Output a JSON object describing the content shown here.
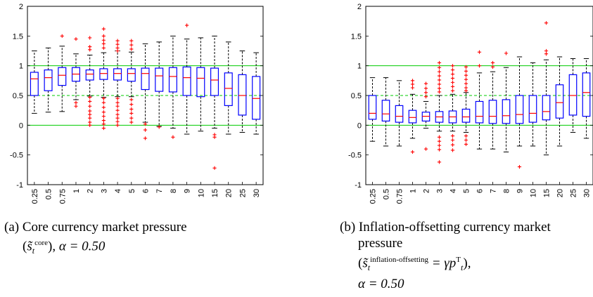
{
  "chart_data": [
    {
      "type": "box",
      "panel_label": "(a)",
      "caption": "Core currency market pressure",
      "caption_math": {
        "symbol": "s̃",
        "subscript": "t",
        "superscript": "core",
        "alpha_text": "α = 0.50"
      },
      "categories": [
        "0.25",
        "0.5",
        "0.75",
        "1",
        "2",
        "3",
        "4",
        "5",
        "6",
        "7",
        "8",
        "9",
        "10",
        "15",
        "20",
        "25",
        "30"
      ],
      "ylim": [
        -1,
        2
      ],
      "yticks": [
        "-1",
        "-0.5",
        "0",
        "0.5",
        "1",
        "1.5",
        "2"
      ],
      "reference_lines": [
        {
          "y": 1,
          "style": "solid",
          "color": "#00cc00"
        },
        {
          "y": 0.5,
          "style": "dashed",
          "color": "#00cc00"
        },
        {
          "y": 0,
          "style": "solid",
          "color": "#00cc00"
        }
      ],
      "boxes": [
        {
          "median": 0.78,
          "q1": 0.5,
          "q3": 0.89,
          "wmin": 0.2,
          "wmax": 1.25
        },
        {
          "median": 0.8,
          "q1": 0.58,
          "q3": 0.93,
          "wmin": 0.22,
          "wmax": 1.3
        },
        {
          "median": 0.84,
          "q1": 0.67,
          "q3": 0.97,
          "wmin": 0.23,
          "wmax": 1.33
        },
        {
          "median": 0.86,
          "q1": 0.74,
          "q3": 0.97,
          "wmin": 0.43,
          "wmax": 1.2
        },
        {
          "median": 0.86,
          "q1": 0.76,
          "q3": 0.93,
          "wmin": 0.49,
          "wmax": 1.18
        },
        {
          "median": 0.87,
          "q1": 0.77,
          "q3": 0.95,
          "wmin": 0.47,
          "wmax": 1.22
        },
        {
          "median": 0.87,
          "q1": 0.76,
          "q3": 0.95,
          "wmin": 0.48,
          "wmax": 1.25
        },
        {
          "median": 0.87,
          "q1": 0.74,
          "q3": 0.95,
          "wmin": 0.48,
          "wmax": 1.23
        },
        {
          "median": 0.87,
          "q1": 0.6,
          "q3": 0.96,
          "wmin": 0.05,
          "wmax": 1.37
        },
        {
          "median": 0.83,
          "q1": 0.57,
          "q3": 0.96,
          "wmin": -0.02,
          "wmax": 1.4
        },
        {
          "median": 0.82,
          "q1": 0.56,
          "q3": 0.97,
          "wmin": -0.05,
          "wmax": 1.5
        },
        {
          "median": 0.8,
          "q1": 0.5,
          "q3": 0.98,
          "wmin": -0.15,
          "wmax": 1.45
        },
        {
          "median": 0.79,
          "q1": 0.48,
          "q3": 0.97,
          "wmin": -0.1,
          "wmax": 1.47
        },
        {
          "median": 0.76,
          "q1": 0.5,
          "q3": 0.96,
          "wmin": -0.05,
          "wmax": 1.5
        },
        {
          "median": 0.62,
          "q1": 0.33,
          "q3": 0.88,
          "wmin": -0.15,
          "wmax": 1.4
        },
        {
          "median": 0.5,
          "q1": 0.17,
          "q3": 0.85,
          "wmin": -0.12,
          "wmax": 1.25
        },
        {
          "median": 0.45,
          "q1": 0.1,
          "q3": 0.82,
          "wmin": -0.15,
          "wmax": 1.22
        }
      ],
      "outliers": [
        {
          "x": "0.75",
          "y": 1.5
        },
        {
          "x": "1",
          "y": 1.45
        },
        {
          "x": "1",
          "y": 0.38
        },
        {
          "x": "1",
          "y": 0.32
        },
        {
          "x": "2",
          "y": 1.47
        },
        {
          "x": "2",
          "y": 1.32
        },
        {
          "x": "2",
          "y": 1.27
        },
        {
          "x": "2",
          "y": 0.47
        },
        {
          "x": "2",
          "y": 0.4
        },
        {
          "x": "2",
          "y": 0.32
        },
        {
          "x": "2",
          "y": 0.24
        },
        {
          "x": "2",
          "y": 0.18
        },
        {
          "x": "2",
          "y": 0.12
        },
        {
          "x": "2",
          "y": 0.05
        },
        {
          "x": "2",
          "y": 0.0
        },
        {
          "x": "3",
          "y": 1.62
        },
        {
          "x": "3",
          "y": 1.5
        },
        {
          "x": "3",
          "y": 1.43
        },
        {
          "x": "3",
          "y": 1.37
        },
        {
          "x": "3",
          "y": 1.3
        },
        {
          "x": "3",
          "y": 0.45
        },
        {
          "x": "3",
          "y": 0.38
        },
        {
          "x": "3",
          "y": 0.3
        },
        {
          "x": "3",
          "y": 0.22
        },
        {
          "x": "3",
          "y": 0.15
        },
        {
          "x": "3",
          "y": 0.08
        },
        {
          "x": "3",
          "y": 0.02
        },
        {
          "x": "3",
          "y": -0.05
        },
        {
          "x": "4",
          "y": 1.42
        },
        {
          "x": "4",
          "y": 1.36
        },
        {
          "x": "4",
          "y": 1.3
        },
        {
          "x": "4",
          "y": 1.25
        },
        {
          "x": "4",
          "y": 0.45
        },
        {
          "x": "4",
          "y": 0.38
        },
        {
          "x": "4",
          "y": 0.32
        },
        {
          "x": "4",
          "y": 0.25
        },
        {
          "x": "4",
          "y": 0.18
        },
        {
          "x": "4",
          "y": 0.12
        },
        {
          "x": "4",
          "y": 0.06
        },
        {
          "x": "4",
          "y": 0.0
        },
        {
          "x": "5",
          "y": 1.42
        },
        {
          "x": "5",
          "y": 1.35
        },
        {
          "x": "5",
          "y": 1.28
        },
        {
          "x": "5",
          "y": 0.43
        },
        {
          "x": "5",
          "y": 0.35
        },
        {
          "x": "5",
          "y": 0.27
        },
        {
          "x": "5",
          "y": 0.2
        },
        {
          "x": "5",
          "y": 0.12
        },
        {
          "x": "5",
          "y": 0.05
        },
        {
          "x": "6",
          "y": 0.02
        },
        {
          "x": "6",
          "y": -0.08
        },
        {
          "x": "6",
          "y": -0.22
        },
        {
          "x": "7",
          "y": -0.03
        },
        {
          "x": "8",
          "y": -0.2
        },
        {
          "x": "9",
          "y": 1.68
        },
        {
          "x": "15",
          "y": -0.16
        },
        {
          "x": "15",
          "y": -0.2
        },
        {
          "x": "15",
          "y": -0.72
        }
      ]
    },
    {
      "type": "box",
      "panel_label": "(b)",
      "caption": "Inflation-offsetting currency market pressure",
      "caption_math": {
        "symbol": "s̃",
        "subscript": "t",
        "superscript": "inflation-offsetting",
        "rhs": "= γp",
        "rhs_superscript": "T",
        "rhs_subscript": "t",
        "alpha_text": "α = 0.50"
      },
      "categories": [
        "0.25",
        "0.5",
        "0.75",
        "1",
        "2",
        "3",
        "4",
        "5",
        "6",
        "7",
        "8",
        "9",
        "10",
        "15",
        "20",
        "25",
        "30"
      ],
      "ylim": [
        -1,
        2
      ],
      "yticks": [
        "-1",
        "-0.5",
        "0",
        "0.5",
        "1",
        "1.5",
        "2"
      ],
      "reference_lines": [
        {
          "y": 1,
          "style": "solid",
          "color": "#00cc00"
        },
        {
          "y": 0.5,
          "style": "dashed",
          "color": "#00cc00"
        },
        {
          "y": 0,
          "style": "solid",
          "color": "#00cc00"
        }
      ],
      "boxes": [
        {
          "median": 0.2,
          "q1": 0.1,
          "q3": 0.5,
          "wmin": -0.27,
          "wmax": 0.8
        },
        {
          "median": 0.19,
          "q1": 0.07,
          "q3": 0.42,
          "wmin": -0.35,
          "wmax": 0.8
        },
        {
          "median": 0.15,
          "q1": 0.05,
          "q3": 0.33,
          "wmin": -0.35,
          "wmax": 0.75
        },
        {
          "median": 0.13,
          "q1": 0.04,
          "q3": 0.25,
          "wmin": -0.22,
          "wmax": 0.52
        },
        {
          "median": 0.15,
          "q1": 0.07,
          "q3": 0.22,
          "wmin": -0.05,
          "wmax": 0.4
        },
        {
          "median": 0.14,
          "q1": 0.05,
          "q3": 0.23,
          "wmin": -0.1,
          "wmax": 0.5
        },
        {
          "median": 0.14,
          "q1": 0.04,
          "q3": 0.24,
          "wmin": -0.1,
          "wmax": 0.52
        },
        {
          "median": 0.14,
          "q1": 0.05,
          "q3": 0.27,
          "wmin": -0.12,
          "wmax": 0.55
        },
        {
          "median": 0.15,
          "q1": 0.04,
          "q3": 0.4,
          "wmin": -0.4,
          "wmax": 0.88
        },
        {
          "median": 0.15,
          "q1": 0.03,
          "q3": 0.42,
          "wmin": -0.4,
          "wmax": 0.9
        },
        {
          "median": 0.16,
          "q1": 0.03,
          "q3": 0.43,
          "wmin": -0.45,
          "wmax": 0.97
        },
        {
          "median": 0.18,
          "q1": 0.03,
          "q3": 0.5,
          "wmin": -0.35,
          "wmax": 1.15
        },
        {
          "median": 0.2,
          "q1": 0.05,
          "q3": 0.5,
          "wmin": -0.35,
          "wmax": 1.05
        },
        {
          "median": 0.23,
          "q1": 0.09,
          "q3": 0.5,
          "wmin": -0.5,
          "wmax": 1.1
        },
        {
          "median": 0.38,
          "q1": 0.12,
          "q3": 0.68,
          "wmin": -0.35,
          "wmax": 1.15
        },
        {
          "median": 0.5,
          "q1": 0.17,
          "q3": 0.85,
          "wmin": -0.12,
          "wmax": 1.12
        },
        {
          "median": 0.55,
          "q1": 0.15,
          "q3": 0.88,
          "wmin": -0.22,
          "wmax": 1.12
        }
      ],
      "outliers": [
        {
          "x": "1",
          "y": 0.75
        },
        {
          "x": "1",
          "y": 0.69
        },
        {
          "x": "1",
          "y": 0.63
        },
        {
          "x": "1",
          "y": -0.45
        },
        {
          "x": "2",
          "y": 0.7
        },
        {
          "x": "2",
          "y": 0.62
        },
        {
          "x": "2",
          "y": 0.55
        },
        {
          "x": "2",
          "y": 0.48
        },
        {
          "x": "2",
          "y": -0.4
        },
        {
          "x": "3",
          "y": 1.05
        },
        {
          "x": "3",
          "y": 0.97
        },
        {
          "x": "3",
          "y": 0.9
        },
        {
          "x": "3",
          "y": 0.83
        },
        {
          "x": "3",
          "y": 0.76
        },
        {
          "x": "3",
          "y": 0.69
        },
        {
          "x": "3",
          "y": 0.62
        },
        {
          "x": "3",
          "y": 0.56
        },
        {
          "x": "3",
          "y": -0.2
        },
        {
          "x": "3",
          "y": -0.27
        },
        {
          "x": "3",
          "y": -0.34
        },
        {
          "x": "3",
          "y": -0.41
        },
        {
          "x": "3",
          "y": -0.62
        },
        {
          "x": "4",
          "y": 1.0
        },
        {
          "x": "4",
          "y": 0.93
        },
        {
          "x": "4",
          "y": 0.86
        },
        {
          "x": "4",
          "y": 0.79
        },
        {
          "x": "4",
          "y": 0.72
        },
        {
          "x": "4",
          "y": 0.65
        },
        {
          "x": "4",
          "y": 0.58
        },
        {
          "x": "4",
          "y": -0.18
        },
        {
          "x": "4",
          "y": -0.25
        },
        {
          "x": "4",
          "y": -0.33
        },
        {
          "x": "4",
          "y": -0.42
        },
        {
          "x": "5",
          "y": 0.98
        },
        {
          "x": "5",
          "y": 0.91
        },
        {
          "x": "5",
          "y": 0.84
        },
        {
          "x": "5",
          "y": 0.77
        },
        {
          "x": "5",
          "y": 0.7
        },
        {
          "x": "5",
          "y": 0.63
        },
        {
          "x": "5",
          "y": 0.58
        },
        {
          "x": "5",
          "y": -0.18
        },
        {
          "x": "5",
          "y": -0.25
        },
        {
          "x": "5",
          "y": -0.32
        },
        {
          "x": "6",
          "y": 1.23
        },
        {
          "x": "6",
          "y": 1.0
        },
        {
          "x": "7",
          "y": 1.05
        },
        {
          "x": "7",
          "y": 0.98
        },
        {
          "x": "8",
          "y": 1.21
        },
        {
          "x": "9",
          "y": -0.7
        },
        {
          "x": "15",
          "y": 1.72
        },
        {
          "x": "15",
          "y": 1.25
        },
        {
          "x": "15",
          "y": 1.2
        }
      ]
    }
  ]
}
